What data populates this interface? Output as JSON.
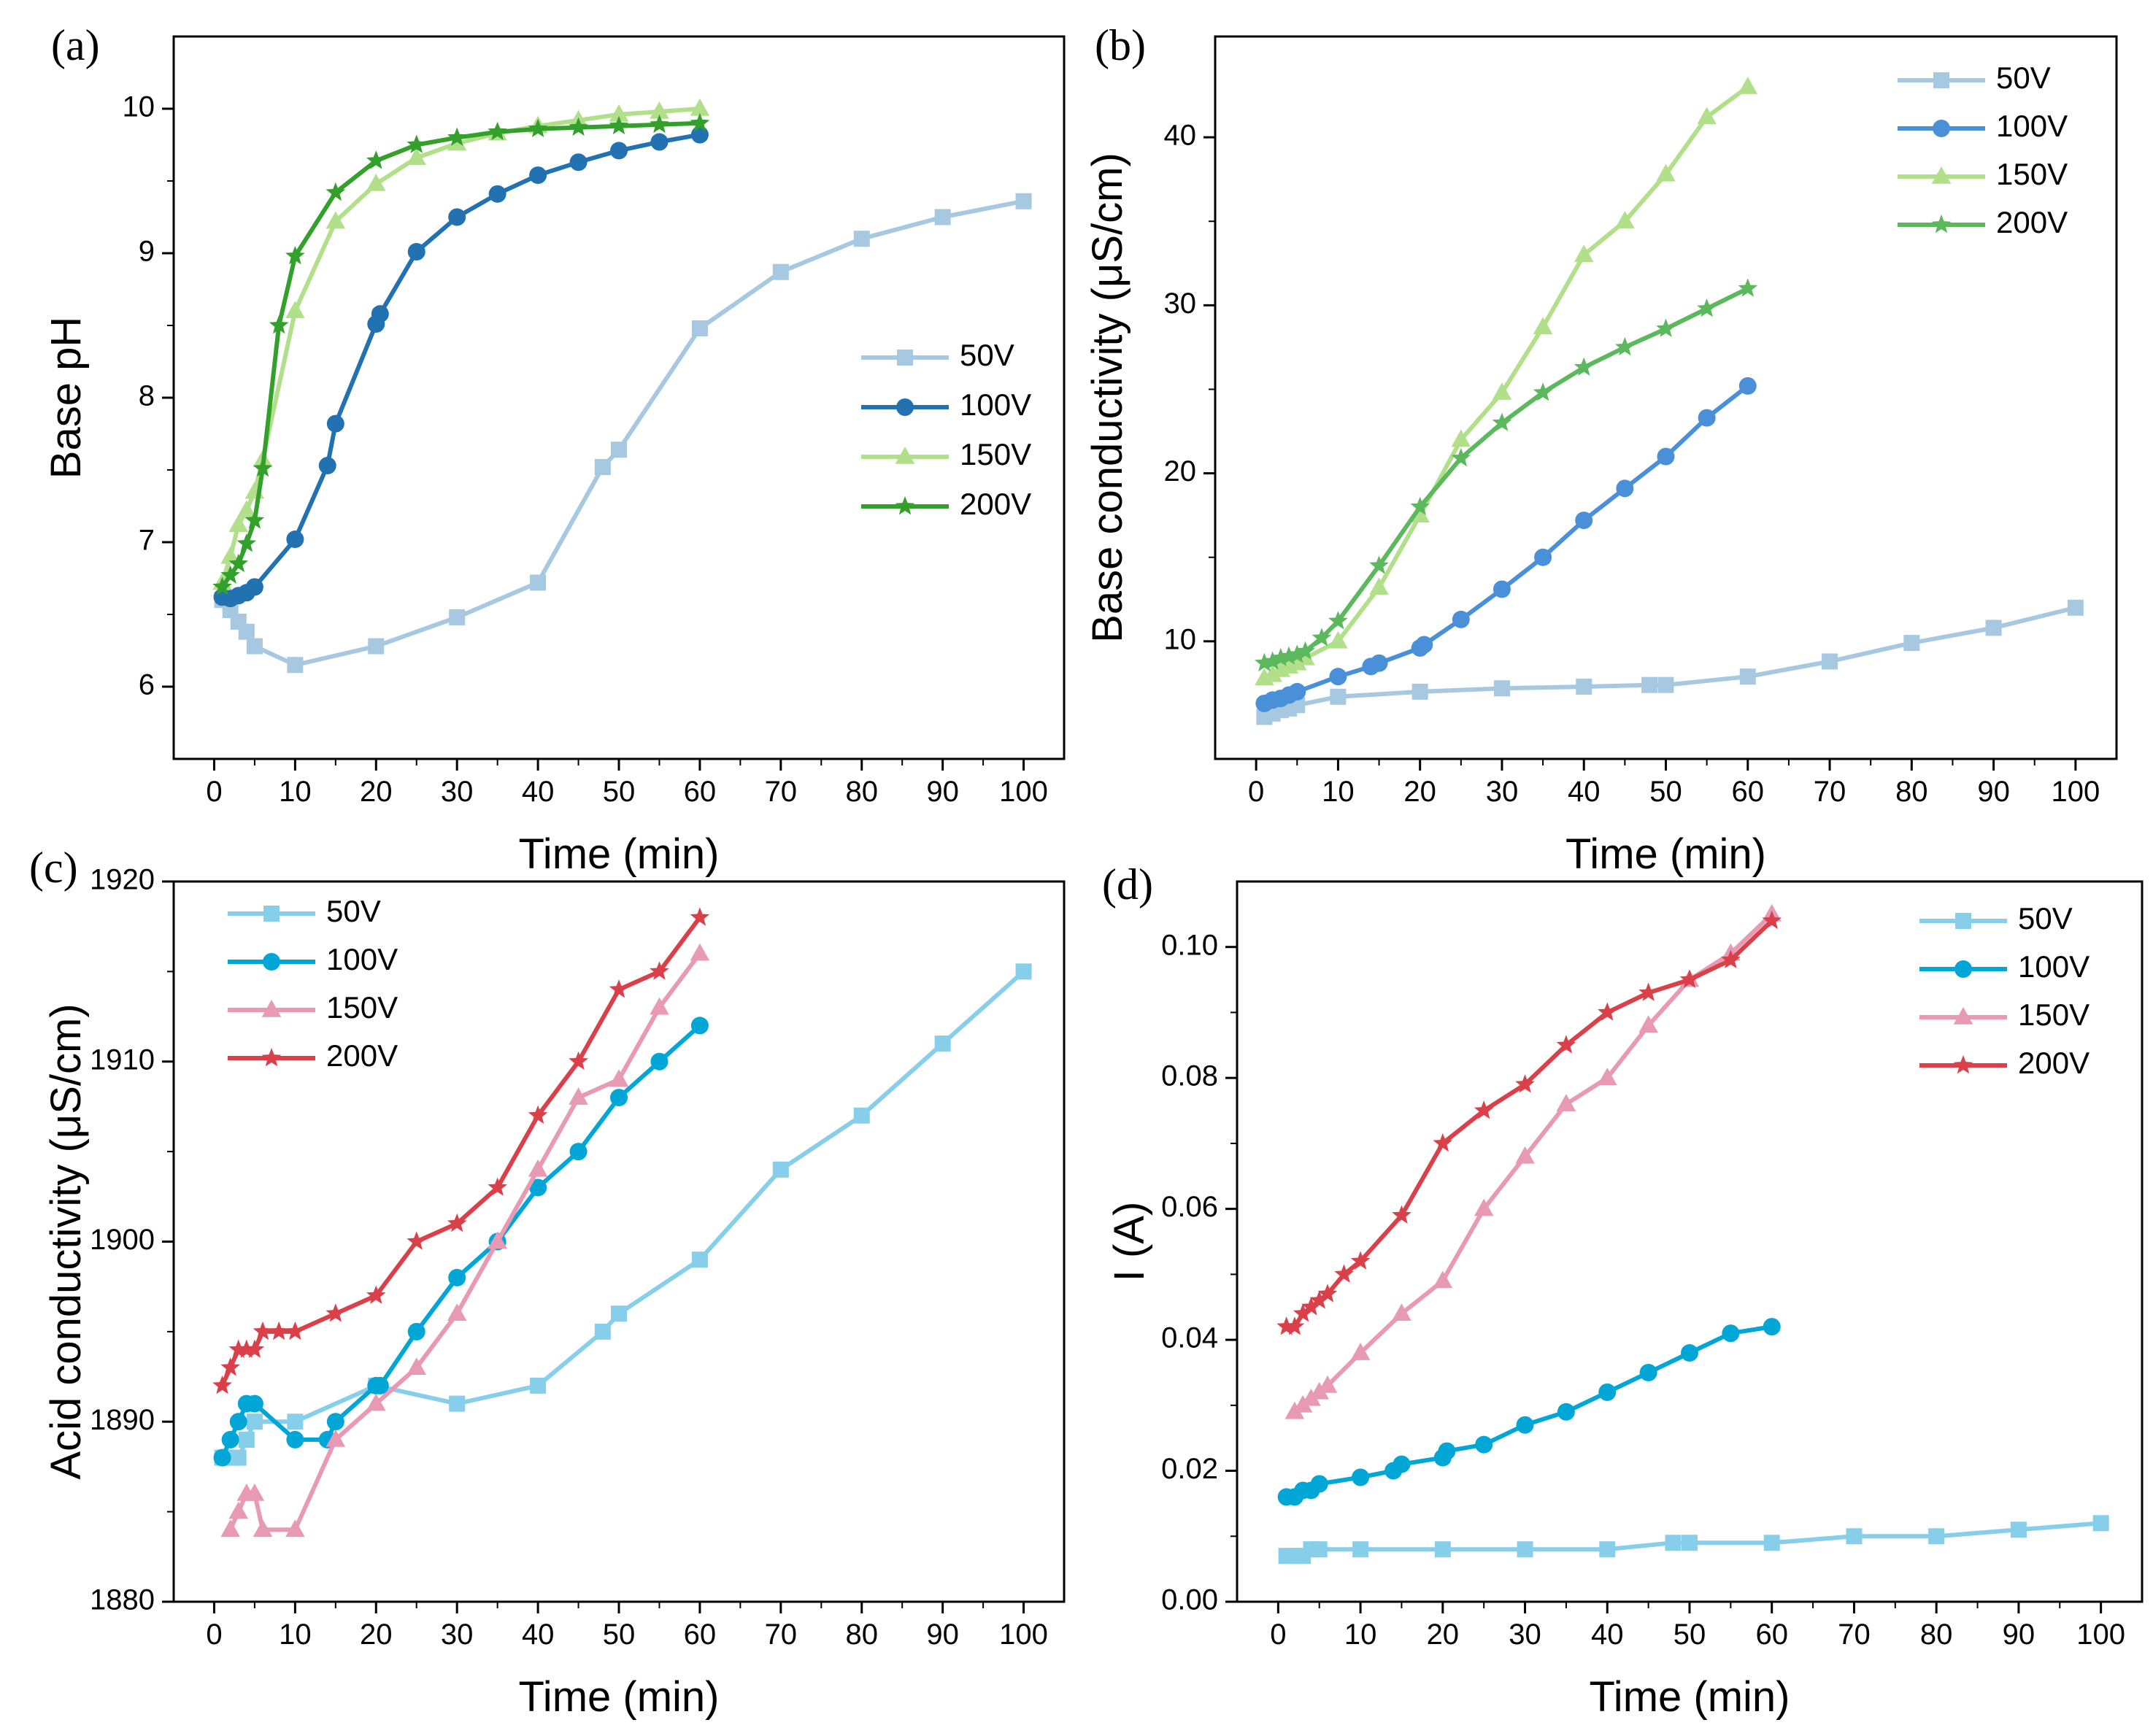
{
  "chart_data": [
    {
      "panel_label": "(a)",
      "type": "line",
      "title": "",
      "xlabel": "Time (min)",
      "ylabel": "Base pH",
      "xlim": [
        -5,
        105
      ],
      "ylim": [
        5.5,
        10.5
      ],
      "xticks": [
        0,
        10,
        20,
        30,
        40,
        50,
        60,
        70,
        80,
        90,
        100
      ],
      "yticks": [
        6,
        7,
        8,
        9,
        10
      ],
      "yfmt": 0,
      "legend_position": "right",
      "series": [
        {
          "name": "50V",
          "color": "#a6c8e0",
          "marker": "square",
          "x": [
            1,
            2,
            3,
            4,
            5,
            10,
            20,
            30,
            40,
            48,
            50,
            60,
            70,
            80,
            90,
            100
          ],
          "y": [
            6.6,
            6.53,
            6.45,
            6.38,
            6.28,
            6.15,
            6.28,
            6.48,
            6.72,
            7.52,
            7.64,
            8.48,
            8.87,
            9.1,
            9.25,
            9.36
          ]
        },
        {
          "name": "100V",
          "color": "#2271b0",
          "marker": "circle",
          "x": [
            1,
            2,
            3,
            4,
            5,
            10,
            14,
            15,
            20,
            20.5,
            25,
            30,
            35,
            40,
            45,
            50,
            55,
            60
          ],
          "y": [
            6.62,
            6.61,
            6.63,
            6.65,
            6.69,
            7.02,
            7.53,
            7.82,
            8.51,
            8.58,
            9.01,
            9.25,
            9.41,
            9.54,
            9.63,
            9.71,
            9.77,
            9.82
          ]
        },
        {
          "name": "150V",
          "color": "#b2df8a",
          "marker": "triangle",
          "x": [
            1,
            2,
            3,
            4,
            5,
            6,
            10,
            15,
            20,
            25,
            30,
            35,
            40,
            45,
            50,
            55,
            60
          ],
          "y": [
            6.72,
            6.9,
            7.12,
            7.22,
            7.35,
            7.57,
            8.6,
            9.22,
            9.48,
            9.66,
            9.76,
            9.83,
            9.88,
            9.92,
            9.96,
            9.98,
            10.0
          ]
        },
        {
          "name": "200V",
          "color": "#33a02c",
          "marker": "star",
          "x": [
            1,
            2,
            3,
            4,
            5,
            6,
            8,
            10,
            15,
            20,
            25,
            30,
            35,
            40,
            45,
            50,
            55,
            60
          ],
          "y": [
            6.69,
            6.77,
            6.85,
            6.99,
            7.15,
            7.51,
            8.5,
            8.98,
            9.42,
            9.64,
            9.75,
            9.8,
            9.84,
            9.86,
            9.87,
            9.88,
            9.89,
            9.9
          ]
        }
      ]
    },
    {
      "panel_label": "(b)",
      "type": "line",
      "title": "",
      "xlabel": "Time (min)",
      "ylabel": "Base conductivity (μS/cm)",
      "xlim": [
        -5,
        105
      ],
      "ylim": [
        3,
        46
      ],
      "xticks": [
        0,
        10,
        20,
        30,
        40,
        50,
        60,
        70,
        80,
        90,
        100
      ],
      "yticks": [
        10,
        20,
        30,
        40
      ],
      "yfmt": 0,
      "legend_position": "top-right",
      "series": [
        {
          "name": "50V",
          "color": "#a6c8e0",
          "marker": "square",
          "x": [
            1,
            2,
            3,
            4,
            5,
            10,
            20,
            30,
            40,
            48,
            50,
            60,
            70,
            80,
            90,
            100
          ],
          "y": [
            5.5,
            5.7,
            5.9,
            6.0,
            6.2,
            6.7,
            7.0,
            7.2,
            7.3,
            7.4,
            7.4,
            7.9,
            8.8,
            9.9,
            10.8,
            12.0
          ]
        },
        {
          "name": "100V",
          "color": "#4a90d9",
          "marker": "circle",
          "x": [
            1,
            2,
            3,
            4,
            5,
            10,
            14,
            15,
            20,
            20.5,
            25,
            30,
            35,
            40,
            45,
            50,
            55,
            60
          ],
          "y": [
            6.3,
            6.5,
            6.6,
            6.8,
            7.0,
            7.9,
            8.5,
            8.7,
            9.6,
            9.8,
            11.3,
            13.1,
            15.0,
            17.2,
            19.1,
            21.0,
            23.3,
            25.2
          ]
        },
        {
          "name": "150V",
          "color": "#b2df8a",
          "marker": "triangle",
          "x": [
            1,
            2,
            3,
            4,
            5,
            6,
            10,
            15,
            20,
            25,
            30,
            35,
            40,
            45,
            50,
            55,
            60
          ],
          "y": [
            7.8,
            8.0,
            8.3,
            8.5,
            8.7,
            9.0,
            10.0,
            13.2,
            17.5,
            22.0,
            24.8,
            28.7,
            33.0,
            35.0,
            37.8,
            41.2,
            43.0
          ]
        },
        {
          "name": "200V",
          "color": "#5cb85c",
          "marker": "star",
          "x": [
            1,
            2,
            3,
            4,
            5,
            6,
            8,
            10,
            15,
            20,
            25,
            30,
            35,
            40,
            45,
            50,
            55,
            60
          ],
          "y": [
            8.7,
            8.8,
            9.0,
            9.1,
            9.2,
            9.4,
            10.2,
            11.2,
            14.5,
            18.0,
            20.9,
            23.0,
            24.8,
            26.3,
            27.5,
            28.6,
            29.8,
            31.0
          ]
        }
      ]
    },
    {
      "panel_label": "(c)",
      "type": "line",
      "title": "",
      "xlabel": "Time (min)",
      "ylabel": "Acid conductivity (μS/cm)",
      "xlim": [
        -5,
        105
      ],
      "ylim": [
        1880,
        1920
      ],
      "xticks": [
        0,
        10,
        20,
        30,
        40,
        50,
        60,
        70,
        80,
        90,
        100
      ],
      "yticks": [
        1880,
        1890,
        1900,
        1910,
        1920
      ],
      "yfmt": 0,
      "legend_position": "top-left",
      "series": [
        {
          "name": "50V",
          "color": "#87ceeb",
          "marker": "square",
          "x": [
            1,
            2,
            3,
            4,
            5,
            10,
            20,
            30,
            40,
            48,
            50,
            60,
            70,
            80,
            90,
            100
          ],
          "y": [
            1888,
            1888,
            1888,
            1889,
            1890,
            1890,
            1892,
            1891,
            1892,
            1895,
            1896,
            1899,
            1904,
            1907,
            1911,
            1915
          ]
        },
        {
          "name": "100V",
          "color": "#00a6d6",
          "marker": "circle",
          "x": [
            1,
            2,
            3,
            4,
            5,
            10,
            14,
            15,
            20,
            20.5,
            25,
            30,
            35,
            40,
            45,
            50,
            55,
            60
          ],
          "y": [
            1888,
            1889,
            1890,
            1891,
            1891,
            1889,
            1889,
            1890,
            1892,
            1892,
            1895,
            1898,
            1900,
            1903,
            1905,
            1908,
            1910,
            1912
          ]
        },
        {
          "name": "150V",
          "color": "#e899b4",
          "marker": "triangle",
          "x": [
            2,
            3,
            4,
            5,
            6,
            10,
            15,
            20,
            25,
            30,
            35,
            40,
            45,
            50,
            55,
            60
          ],
          "y": [
            1884,
            1885,
            1886,
            1886,
            1884,
            1884,
            1889,
            1891,
            1893,
            1896,
            1900,
            1904,
            1908,
            1909,
            1913,
            1916
          ]
        },
        {
          "name": "200V",
          "color": "#d9404a",
          "marker": "star",
          "x": [
            1,
            2,
            3,
            4,
            5,
            6,
            8,
            10,
            15,
            20,
            25,
            30,
            35,
            40,
            45,
            50,
            55,
            60
          ],
          "y": [
            1892,
            1893,
            1894,
            1894,
            1894,
            1895,
            1895,
            1895,
            1896,
            1897,
            1900,
            1901,
            1903,
            1907,
            1910,
            1914,
            1915,
            1918
          ]
        }
      ]
    },
    {
      "panel_label": "(d)",
      "type": "line",
      "title": "",
      "xlabel": "Time (min)",
      "ylabel": "I (A)",
      "xlim": [
        -5,
        105
      ],
      "ylim": [
        0,
        0.11
      ],
      "xticks": [
        0,
        10,
        20,
        30,
        40,
        50,
        60,
        70,
        80,
        90,
        100
      ],
      "yticks": [
        0.0,
        0.02,
        0.04,
        0.06,
        0.08,
        0.1
      ],
      "yfmt": 2,
      "legend_position": "top-right",
      "series": [
        {
          "name": "50V",
          "color": "#87ceeb",
          "marker": "square",
          "x": [
            1,
            2,
            3,
            4,
            5,
            10,
            20,
            30,
            40,
            48,
            50,
            60,
            70,
            80,
            90,
            100
          ],
          "y": [
            0.007,
            0.007,
            0.007,
            0.008,
            0.008,
            0.008,
            0.008,
            0.008,
            0.008,
            0.009,
            0.009,
            0.009,
            0.01,
            0.01,
            0.011,
            0.012
          ]
        },
        {
          "name": "100V",
          "color": "#00a6d6",
          "marker": "circle",
          "x": [
            1,
            2,
            3,
            4,
            5,
            10,
            14,
            15,
            20,
            20.5,
            25,
            30,
            35,
            40,
            45,
            50,
            55,
            60
          ],
          "y": [
            0.016,
            0.016,
            0.017,
            0.017,
            0.018,
            0.019,
            0.02,
            0.021,
            0.022,
            0.023,
            0.024,
            0.027,
            0.029,
            0.032,
            0.035,
            0.038,
            0.041,
            0.042
          ]
        },
        {
          "name": "150V",
          "color": "#e899b4",
          "marker": "triangle",
          "x": [
            2,
            3,
            4,
            5,
            6,
            10,
            15,
            20,
            25,
            30,
            35,
            40,
            45,
            50,
            55,
            60
          ],
          "y": [
            0.029,
            0.03,
            0.031,
            0.032,
            0.033,
            0.038,
            0.044,
            0.049,
            0.06,
            0.068,
            0.076,
            0.08,
            0.088,
            0.095,
            0.099,
            0.105
          ]
        },
        {
          "name": "200V",
          "color": "#d9404a",
          "marker": "star",
          "x": [
            1,
            2,
            3,
            4,
            5,
            6,
            8,
            10,
            15,
            20,
            25,
            30,
            35,
            40,
            45,
            50,
            55,
            60
          ],
          "y": [
            0.042,
            0.042,
            0.044,
            0.045,
            0.046,
            0.047,
            0.05,
            0.052,
            0.059,
            0.07,
            0.075,
            0.079,
            0.085,
            0.09,
            0.093,
            0.095,
            0.098,
            0.104
          ]
        }
      ]
    }
  ]
}
